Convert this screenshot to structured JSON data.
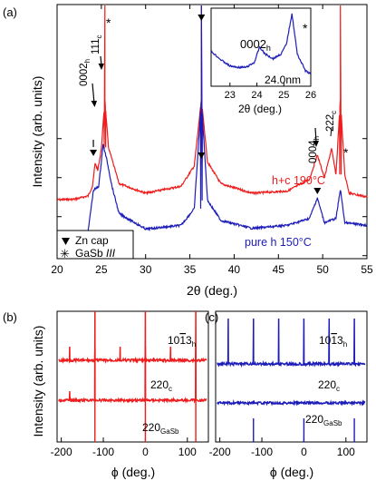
{
  "chart_data": [
    {
      "panel": "(a)",
      "type": "line",
      "xlabel": "2θ (deg.)",
      "ylabel": "Intensity (arb. units)",
      "xlim": [
        20,
        55
      ],
      "xticks": [
        20,
        25,
        30,
        35,
        40,
        45,
        50,
        55
      ],
      "yscale": "log",
      "series": [
        {
          "name": "h+c 190°C",
          "color": "#ee1c1c",
          "x": [
            20,
            22,
            23.5,
            24.0,
            24.3,
            24.6,
            25.0,
            25.4,
            25.8,
            27,
            30,
            34,
            35.5,
            36.3,
            37,
            38.5,
            42,
            46,
            48.5,
            49.4,
            50.2,
            51.0,
            51.5,
            52.0,
            52.5,
            53,
            55
          ],
          "y": [
            0.027,
            0.028,
            0.034,
            0.06,
            0.24,
            0.15,
            0.55,
            10.0,
            0.6,
            0.07,
            0.04,
            0.06,
            0.2,
            10.0,
            0.25,
            0.07,
            0.04,
            0.045,
            0.09,
            0.38,
            0.1,
            0.55,
            0.12,
            10.0,
            0.12,
            0.04,
            0.032
          ]
        },
        {
          "name": "pure h 150°C",
          "color": "#1c1cb8",
          "x": [
            20,
            22,
            23.5,
            24.1,
            24.7,
            25.2,
            25.6,
            26.2,
            27,
            30,
            34,
            35.5,
            36.3,
            37,
            38.5,
            42,
            46,
            48.5,
            49.4,
            50.2,
            51.5,
            52.0,
            52.5,
            55
          ],
          "y": [
            0.0032,
            0.0033,
            0.0042,
            0.047,
            0.06,
            0.7,
            0.3,
            0.06,
            0.012,
            0.0048,
            0.006,
            0.016,
            10.0,
            0.026,
            0.008,
            0.005,
            0.006,
            0.009,
            0.03,
            0.007,
            0.009,
            0.05,
            0.007,
            0.006
          ]
        }
      ],
      "annotations": [
        {
          "label": "0002h",
          "x": 24.2
        },
        {
          "label": "111c",
          "x": 25.3
        },
        {
          "label": "0004h",
          "x": 49.4
        },
        {
          "label": "222c",
          "x": 51.1
        },
        {
          "label": "*",
          "x": 25.5
        },
        {
          "label": "*",
          "x": 52.2
        }
      ],
      "legend": [
        {
          "marker": "▼",
          "label": "Zn cap"
        },
        {
          "marker": "✳",
          "label": "GaSb III"
        }
      ],
      "inset": {
        "xlabel": "2θ (deg.)",
        "xlim": [
          22.3,
          26
        ],
        "xticks": [
          23,
          24,
          25,
          26
        ],
        "labels": [
          "0002h",
          "24.0nm",
          "*"
        ],
        "x": [
          22.3,
          22.7,
          23.0,
          23.3,
          23.6,
          23.9,
          24.1,
          24.3,
          24.6,
          24.9,
          25.1,
          25.3,
          25.5,
          25.8,
          26.0
        ],
        "y": [
          0.44,
          0.3,
          0.22,
          0.2,
          0.2,
          0.27,
          0.5,
          0.4,
          0.33,
          0.4,
          0.55,
          1.0,
          0.4,
          0.15,
          0.1
        ]
      }
    },
    {
      "panel": "(b)",
      "type": "line",
      "xlabel": "ϕ (deg.)",
      "ylabel": "Intensity (arb. units)",
      "xlim": [
        -210,
        150
      ],
      "xticks": [
        -200,
        -100,
        0,
        100
      ],
      "color": "#ee1c1c",
      "series": [
        {
          "name": "10-13h",
          "peaks": [
            -180,
            -120,
            -60,
            0,
            60,
            120
          ]
        },
        {
          "name": "220c",
          "peaks": [
            -180,
            -120,
            0,
            120
          ]
        },
        {
          "name": "220GaSb",
          "peaks": [
            -120,
            0,
            120
          ]
        }
      ]
    },
    {
      "panel": "(c)",
      "type": "line",
      "xlabel": "ϕ (deg.)",
      "xlim": [
        -210,
        150
      ],
      "xticks": [
        -200,
        -100,
        0,
        100
      ],
      "color": "#1c1cb8",
      "series": [
        {
          "name": "10-13h",
          "peaks": [
            -180,
            -120,
            -60,
            0,
            60,
            120
          ]
        },
        {
          "name": "220c",
          "peaks": []
        },
        {
          "name": "220GaSb",
          "peaks": [
            -120,
            0,
            120
          ]
        }
      ]
    }
  ],
  "labels": {
    "panel_a": "(a)",
    "panel_b": "(b)",
    "panel_c": "(c)",
    "ylabel_a": "Intensity (arb. units)",
    "xlabel_a": "2θ (deg.)",
    "ylabel_b": "Intensity (arb. units)",
    "xlabel_b": "ϕ (deg.)",
    "xlabel_c": "ϕ (deg.)",
    "inset_xlabel": "2θ (deg.)",
    "inset_peak": "0002",
    "inset_peak_sub": "h",
    "inset_size": "24.0nm",
    "series_red": "h+c 190°C",
    "series_blue": "pure h 150°C",
    "ann_0002": "0002",
    "ann_0002_sub": "h",
    "ann_111": "111",
    "ann_111_sub": "c",
    "ann_0004": "0004",
    "ann_0004_sub": "h",
    "ann_222": "222",
    "ann_222_sub": "c",
    "legend_zn": "Zn cap",
    "legend_gasb": "GaSb",
    "legend_gasb_phase": "III",
    "b_label1": "10",
    "b_label1_bar": "1",
    "b_label1_end": "3",
    "b_label1_sub": "h",
    "b_label2": "220",
    "b_label2_sub": "c",
    "b_label3": "220",
    "b_label3_sub": "GaSb",
    "star": "*"
  }
}
